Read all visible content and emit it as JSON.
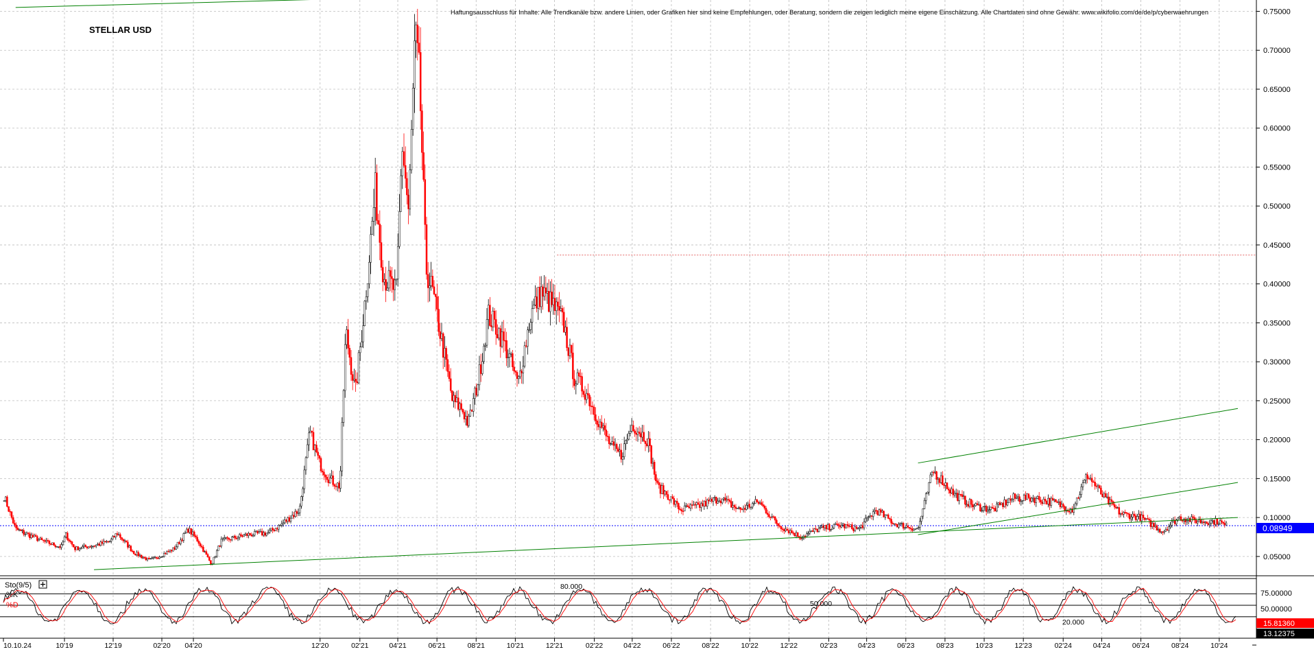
{
  "chart_data": {
    "type": "candlestick",
    "title": "STELLAR USD",
    "disclaimer": "Haftungsausschluss für Inhalte: Alle Trendkanäle bzw. andere Linien, oder Grafiken hier sind keine Empfehlungen, oder Beratung, sondern die zeigen lediglich meine eigene Einschätzung. Alle Chartdaten sind ohne Gewähr. www.wikifolio.com/de/de/p/cyberwaehrungen",
    "ylim": [
      0.02,
      0.77
    ],
    "y_ticks": [
      "0.75000",
      "0.70000",
      "0.65000",
      "0.60000",
      "0.55000",
      "0.50000",
      "0.45000",
      "0.40000",
      "0.35000",
      "0.30000",
      "0.25000",
      "0.20000",
      "0.15000",
      "0.10000",
      "0.05000"
    ],
    "y_tick_values": [
      0.75,
      0.7,
      0.65,
      0.6,
      0.55,
      0.5,
      0.45,
      0.4,
      0.35,
      0.3,
      0.25,
      0.2,
      0.15,
      0.1,
      0.05
    ],
    "x_labels": [
      "10.10.24",
      "10'19",
      "12'19",
      "02'20",
      "04'20",
      "12'20",
      "02'21",
      "04'21",
      "06'21",
      "08'21",
      "10'21",
      "12'21",
      "02'22",
      "04'22",
      "06'22",
      "08'22",
      "10'22",
      "12'22",
      "02'23",
      "04'23",
      "06'23",
      "08'23",
      "10'23",
      "12'23",
      "02'24",
      "04'24",
      "06'24",
      "08'24",
      "10'24"
    ],
    "current_price": {
      "label": "0.08949",
      "value": 0.08949
    },
    "price_path": [
      {
        "d": "2019-07-27",
        "v": 0.13
      },
      {
        "d": "2019-08-15",
        "v": 0.085
      },
      {
        "d": "2019-09-25",
        "v": 0.07
      },
      {
        "d": "2019-10-25",
        "v": 0.062
      },
      {
        "d": "2019-11-01",
        "v": 0.078
      },
      {
        "d": "2019-11-15",
        "v": 0.06
      },
      {
        "d": "2019-12-20",
        "v": 0.065
      },
      {
        "d": "2020-01-10",
        "v": 0.07
      },
      {
        "d": "2020-01-20",
        "v": 0.08
      },
      {
        "d": "2020-02-15",
        "v": 0.055
      },
      {
        "d": "2020-03-10",
        "v": 0.045
      },
      {
        "d": "2020-03-25",
        "v": 0.05
      },
      {
        "d": "2020-04-18",
        "v": 0.06
      },
      {
        "d": "2020-05-10",
        "v": 0.085
      },
      {
        "d": "2020-05-25",
        "v": 0.07
      },
      {
        "d": "2020-06-15",
        "v": 0.04
      },
      {
        "d": "2020-06-30",
        "v": 0.07
      },
      {
        "d": "2020-08-10",
        "v": 0.078
      },
      {
        "d": "2020-09-10",
        "v": 0.08
      },
      {
        "d": "2020-09-30",
        "v": 0.09
      },
      {
        "d": "2020-10-30",
        "v": 0.11
      },
      {
        "d": "2020-11-15",
        "v": 0.21
      },
      {
        "d": "2020-11-30",
        "v": 0.17
      },
      {
        "d": "2020-12-15",
        "v": 0.15
      },
      {
        "d": "2021-01-01",
        "v": 0.14
      },
      {
        "d": "2021-01-10",
        "v": 0.34
      },
      {
        "d": "2021-01-25",
        "v": 0.26
      },
      {
        "d": "2021-02-08",
        "v": 0.37
      },
      {
        "d": "2021-02-25",
        "v": 0.52
      },
      {
        "d": "2021-03-10",
        "v": 0.41
      },
      {
        "d": "2021-03-30",
        "v": 0.39
      },
      {
        "d": "2021-04-08",
        "v": 0.58
      },
      {
        "d": "2021-04-18",
        "v": 0.49
      },
      {
        "d": "2021-04-28",
        "v": 0.72
      },
      {
        "d": "2021-05-05",
        "v": 0.66
      },
      {
        "d": "2021-05-15",
        "v": 0.42
      },
      {
        "d": "2021-05-25",
        "v": 0.39
      },
      {
        "d": "2021-06-10",
        "v": 0.32
      },
      {
        "d": "2021-06-25",
        "v": 0.25
      },
      {
        "d": "2021-07-10",
        "v": 0.24
      },
      {
        "d": "2021-07-20",
        "v": 0.22
      },
      {
        "d": "2021-08-05",
        "v": 0.28
      },
      {
        "d": "2021-08-20",
        "v": 0.36
      },
      {
        "d": "2021-09-05",
        "v": 0.34
      },
      {
        "d": "2021-09-20",
        "v": 0.31
      },
      {
        "d": "2021-10-05",
        "v": 0.27
      },
      {
        "d": "2021-10-25",
        "v": 0.36
      },
      {
        "d": "2021-11-10",
        "v": 0.39
      },
      {
        "d": "2021-11-30",
        "v": 0.37
      },
      {
        "d": "2021-12-15",
        "v": 0.35
      },
      {
        "d": "2022-01-01",
        "v": 0.28
      },
      {
        "d": "2022-01-20",
        "v": 0.26
      },
      {
        "d": "2022-02-10",
        "v": 0.22
      },
      {
        "d": "2022-02-28",
        "v": 0.19
      },
      {
        "d": "2022-03-15",
        "v": 0.18
      },
      {
        "d": "2022-04-01",
        "v": 0.22
      },
      {
        "d": "2022-04-25",
        "v": 0.2
      },
      {
        "d": "2022-05-10",
        "v": 0.14
      },
      {
        "d": "2022-05-25",
        "v": 0.13
      },
      {
        "d": "2022-06-15",
        "v": 0.11
      },
      {
        "d": "2022-07-15",
        "v": 0.115
      },
      {
        "d": "2022-08-15",
        "v": 0.125
      },
      {
        "d": "2022-09-15",
        "v": 0.11
      },
      {
        "d": "2022-10-15",
        "v": 0.12
      },
      {
        "d": "2022-11-15",
        "v": 0.09
      },
      {
        "d": "2022-12-20",
        "v": 0.075
      },
      {
        "d": "2023-01-15",
        "v": 0.085
      },
      {
        "d": "2023-02-20",
        "v": 0.09
      },
      {
        "d": "2023-03-20",
        "v": 0.085
      },
      {
        "d": "2023-04-15",
        "v": 0.11
      },
      {
        "d": "2023-05-15",
        "v": 0.092
      },
      {
        "d": "2023-06-20",
        "v": 0.085
      },
      {
        "d": "2023-07-13",
        "v": 0.16
      },
      {
        "d": "2023-07-25",
        "v": 0.15
      },
      {
        "d": "2023-08-15",
        "v": 0.13
      },
      {
        "d": "2023-09-15",
        "v": 0.115
      },
      {
        "d": "2023-10-15",
        "v": 0.11
      },
      {
        "d": "2023-11-15",
        "v": 0.125
      },
      {
        "d": "2023-12-15",
        "v": 0.125
      },
      {
        "d": "2024-01-15",
        "v": 0.12
      },
      {
        "d": "2024-02-15",
        "v": 0.11
      },
      {
        "d": "2024-03-10",
        "v": 0.155
      },
      {
        "d": "2024-04-05",
        "v": 0.125
      },
      {
        "d": "2024-05-01",
        "v": 0.105
      },
      {
        "d": "2024-06-01",
        "v": 0.1
      },
      {
        "d": "2024-07-05",
        "v": 0.082
      },
      {
        "d": "2024-07-30",
        "v": 0.1
      },
      {
        "d": "2024-09-01",
        "v": 0.095
      },
      {
        "d": "2024-10-01",
        "v": 0.095
      },
      {
        "d": "2024-10-10",
        "v": 0.0895
      }
    ],
    "trend_lines": [
      {
        "from": {
          "d": "2019-08-15",
          "v": 0.755
        },
        "to": {
          "d": "2021-07-05",
          "v": 0.77
        }
      },
      {
        "from": {
          "d": "2019-12-15",
          "v": 0.033
        },
        "to": {
          "d": "2024-10-30",
          "v": 0.1
        }
      },
      {
        "from": {
          "d": "2023-06-20",
          "v": 0.17
        },
        "to": {
          "d": "2024-10-30",
          "v": 0.24
        }
      },
      {
        "from": {
          "d": "2023-06-20",
          "v": 0.078
        },
        "to": {
          "d": "2024-10-30",
          "v": 0.145
        }
      }
    ],
    "resistance_lines": [
      {
        "value": 0.765,
        "from": "2019-07-27"
      },
      {
        "value": 0.437,
        "from": "2021-12-05"
      }
    ],
    "indicator": {
      "name": "Sto(9/5)",
      "k_label": "%K",
      "d_label": "%D",
      "ylim": [
        0,
        100
      ],
      "levels": [
        80,
        50,
        20
      ],
      "level_labels": [
        "80.000",
        "50.000",
        "20.000"
      ],
      "right_labels": [
        "75.00000",
        "50.00000"
      ],
      "k_value_label": "15.81360",
      "d_value_label": "13.12375"
    },
    "colors": {
      "bull": "#000000",
      "bear": "#ff0000",
      "trend": "#008000",
      "price_marker": "#0000ff"
    }
  }
}
